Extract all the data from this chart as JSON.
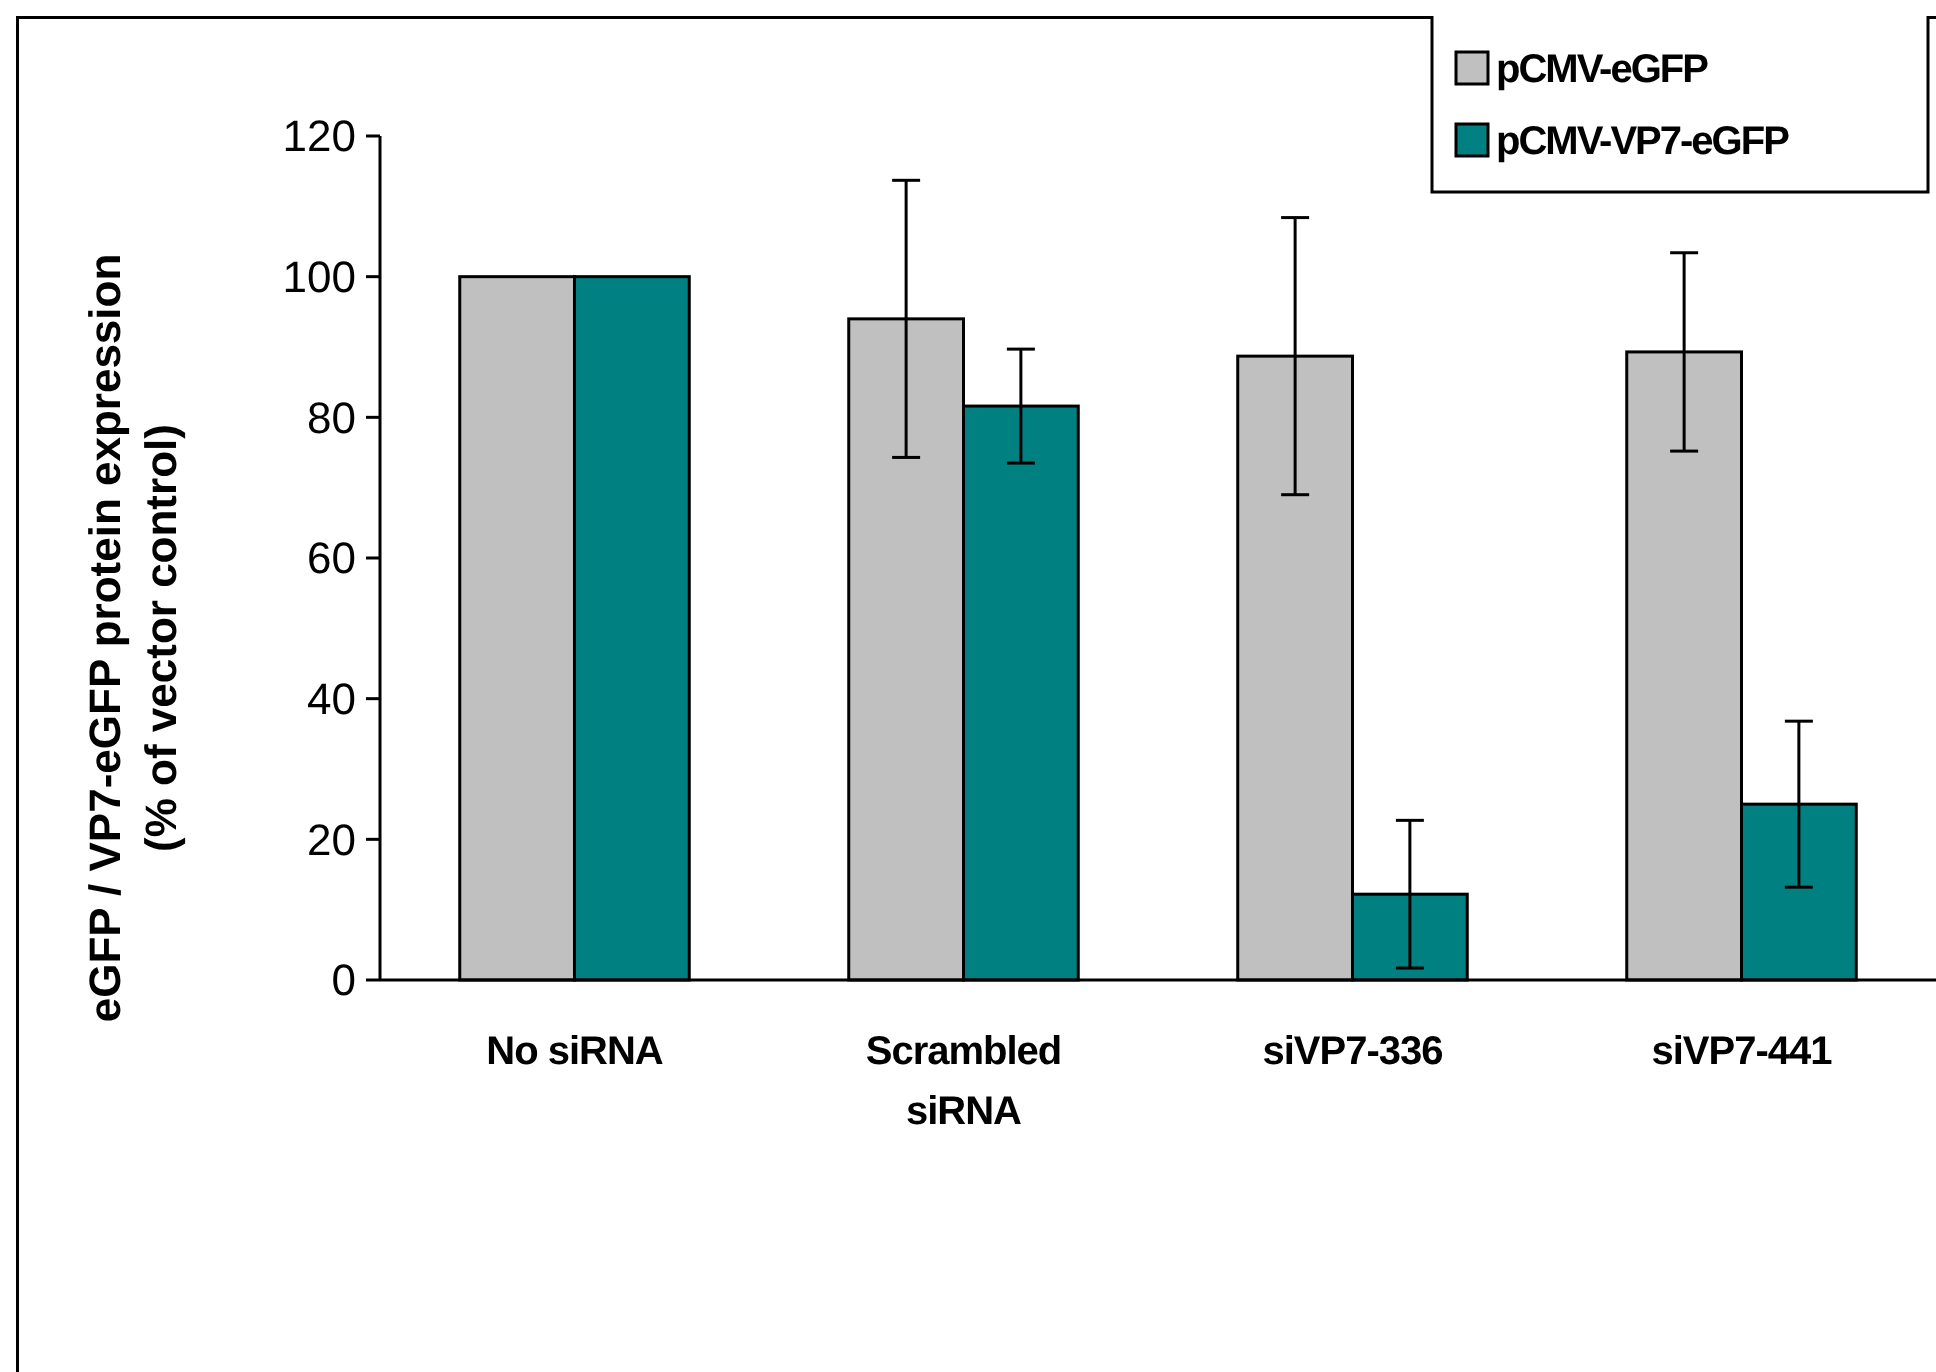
{
  "chart_data": {
    "type": "bar",
    "ylabel": "eGFP / VP7-eGFP protein expression (% of vector control)",
    "categories": [
      "No siRNA",
      "Scrambled siRNA",
      "siVP7-336",
      "siVP7-441"
    ],
    "series": [
      {
        "name": "pCMV-eGFP",
        "color": "#c0c0c0",
        "values": [
          100,
          94,
          88.7,
          89.3
        ],
        "errors": [
          null,
          19.7,
          19.7,
          14.1
        ]
      },
      {
        "name": "pCMV-VP7-eGFP",
        "color": "#008080",
        "values": [
          100,
          81.6,
          12.2,
          25
        ],
        "errors": [
          null,
          8.1,
          10.5,
          11.8
        ]
      }
    ],
    "ylim": [
      0,
      120
    ],
    "yticks": [
      0,
      20,
      40,
      60,
      80,
      100,
      120
    ],
    "grid": false,
    "legend": "top right"
  }
}
